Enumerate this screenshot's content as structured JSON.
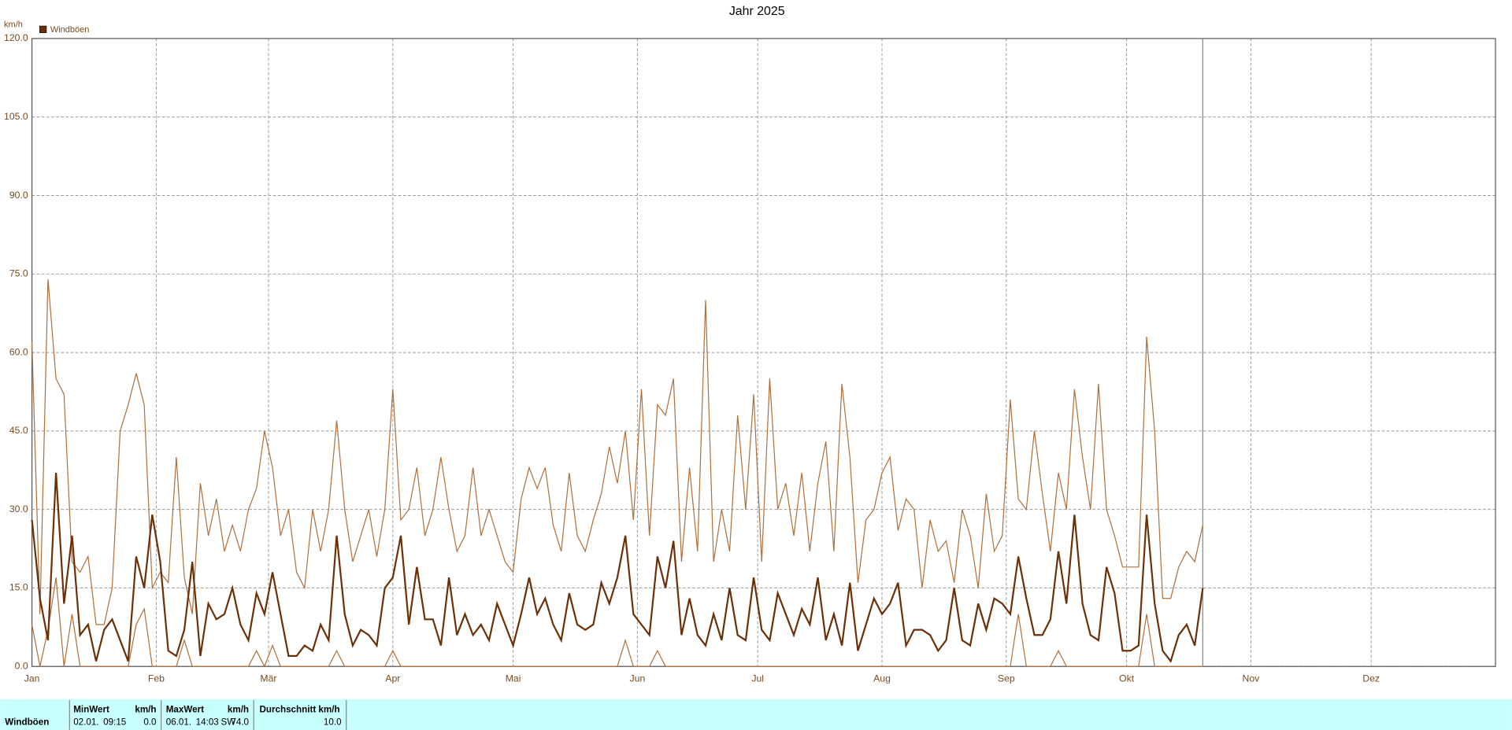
{
  "chart_data": {
    "type": "line",
    "title": "Jahr 2025",
    "y_label": "km/h",
    "xlim": [
      0,
      365
    ],
    "ylim": [
      0,
      120
    ],
    "grid": true,
    "legend": "top-left",
    "xticks": [
      {
        "value": 0,
        "label": "Jan"
      },
      {
        "value": 31,
        "label": "Feb"
      },
      {
        "value": 59,
        "label": "Mär"
      },
      {
        "value": 90,
        "label": "Apr"
      },
      {
        "value": 120,
        "label": "Mai"
      },
      {
        "value": 151,
        "label": "Jun"
      },
      {
        "value": 181,
        "label": "Jul"
      },
      {
        "value": 212,
        "label": "Aug"
      },
      {
        "value": 243,
        "label": "Sep"
      },
      {
        "value": 273,
        "label": "Okt"
      },
      {
        "value": 304,
        "label": "Nov"
      },
      {
        "value": 334,
        "label": "Dez"
      }
    ],
    "yticks": [
      {
        "value": 0,
        "label": "0.0"
      },
      {
        "value": 15,
        "label": "15.0"
      },
      {
        "value": 30,
        "label": "30.0"
      },
      {
        "value": 45,
        "label": "45.0"
      },
      {
        "value": 60,
        "label": "60.0"
      },
      {
        "value": 75,
        "label": "75.0"
      },
      {
        "value": 90,
        "label": "90.0"
      },
      {
        "value": 105,
        "label": "105.0"
      },
      {
        "value": 120,
        "label": "120.0"
      }
    ],
    "x": [
      0,
      2,
      4,
      6,
      8,
      10,
      12,
      14,
      16,
      18,
      20,
      22,
      24,
      26,
      28,
      30,
      32,
      34,
      36,
      38,
      40,
      42,
      44,
      46,
      48,
      50,
      52,
      54,
      56,
      58,
      60,
      62,
      64,
      66,
      68,
      70,
      72,
      74,
      76,
      78,
      80,
      82,
      84,
      86,
      88,
      90,
      92,
      94,
      96,
      98,
      100,
      102,
      104,
      106,
      108,
      110,
      112,
      114,
      116,
      118,
      120,
      122,
      124,
      126,
      128,
      130,
      132,
      134,
      136,
      138,
      140,
      142,
      144,
      146,
      148,
      150,
      152,
      154,
      156,
      158,
      160,
      162,
      164,
      166,
      168,
      170,
      172,
      174,
      176,
      178,
      180,
      182,
      184,
      186,
      188,
      190,
      192,
      194,
      196,
      198,
      200,
      202,
      204,
      206,
      208,
      210,
      212,
      214,
      216,
      218,
      220,
      222,
      224,
      226,
      228,
      230,
      232,
      234,
      236,
      238,
      240,
      242,
      244,
      246,
      248,
      250,
      252,
      254,
      256,
      258,
      260,
      262,
      264,
      266,
      268,
      270,
      272,
      274,
      276,
      278,
      280,
      282,
      284,
      286,
      288,
      290,
      292
    ],
    "series": [
      {
        "name": "Windböen",
        "color": "#6b3008",
        "values": [
          28,
          13,
          5,
          37,
          12,
          25,
          6,
          8,
          1,
          7,
          9,
          5,
          1,
          21,
          15,
          29,
          20,
          3,
          2,
          7,
          20,
          2,
          12,
          9,
          10,
          15,
          8,
          5,
          14,
          10,
          18,
          10,
          2,
          2,
          4,
          3,
          8,
          5,
          25,
          10,
          4,
          7,
          6,
          4,
          15,
          17,
          25,
          8,
          19,
          9,
          9,
          4,
          17,
          6,
          10,
          6,
          8,
          5,
          12,
          8,
          4,
          10,
          17,
          10,
          13,
          8,
          5,
          14,
          8,
          7,
          8,
          16,
          12,
          17,
          25,
          10,
          8,
          6,
          21,
          15,
          24,
          6,
          13,
          6,
          4,
          10,
          5,
          15,
          6,
          5,
          17,
          7,
          5,
          14,
          10,
          6,
          11,
          8,
          17,
          5,
          10,
          4,
          16,
          3,
          8,
          13,
          10,
          12,
          16,
          4,
          7,
          7,
          6,
          3,
          5,
          15,
          5,
          4,
          12,
          7,
          13,
          12,
          10,
          21,
          13,
          6,
          6,
          9,
          22,
          12,
          29,
          12,
          6,
          5,
          19,
          14,
          3,
          3,
          4,
          29,
          12,
          3,
          1,
          6,
          8,
          4,
          15
        ]
      },
      {
        "color": "#b0703c",
        "values": [
          62,
          10,
          74,
          55,
          52,
          20,
          18,
          21,
          8,
          8,
          15,
          45,
          50,
          56,
          50,
          15,
          18,
          16,
          40,
          17,
          10,
          35,
          25,
          32,
          22,
          27,
          22,
          30,
          34,
          45,
          38,
          25,
          30,
          18,
          15,
          30,
          22,
          30,
          47,
          30,
          20,
          25,
          30,
          21,
          30,
          53,
          28,
          30,
          38,
          25,
          30,
          40,
          30,
          22,
          25,
          38,
          25,
          30,
          25,
          20,
          18,
          32,
          38,
          34,
          38,
          27,
          22,
          37,
          25,
          22,
          28,
          33,
          42,
          35,
          45,
          28,
          53,
          25,
          50,
          48,
          55,
          20,
          38,
          22,
          70,
          20,
          30,
          22,
          48,
          30,
          52,
          20,
          55,
          30,
          35,
          25,
          37,
          22,
          35,
          43,
          22,
          54,
          40,
          16,
          28,
          30,
          37,
          40,
          26,
          32,
          30,
          15,
          28,
          22,
          24,
          16,
          30,
          25,
          15,
          33,
          22,
          25,
          51,
          32,
          30,
          45,
          33,
          22,
          37,
          30,
          53,
          40,
          30,
          54,
          30,
          25,
          19,
          19,
          19,
          63,
          45,
          13,
          13,
          19,
          22,
          20,
          27
        ]
      },
      {
        "color": "#b0703c",
        "values": [
          8,
          0,
          7,
          17,
          0,
          10,
          0,
          0,
          0,
          0,
          0,
          0,
          0,
          8,
          11,
          0,
          0,
          0,
          0,
          5,
          0,
          0,
          0,
          0,
          0,
          0,
          0,
          0,
          3,
          0,
          4,
          0,
          0,
          0,
          0,
          0,
          0,
          0,
          3,
          0,
          0,
          0,
          0,
          0,
          0,
          3,
          0,
          0,
          0,
          0,
          0,
          0,
          0,
          0,
          0,
          0,
          0,
          0,
          0,
          0,
          0,
          0,
          0,
          0,
          0,
          0,
          0,
          0,
          0,
          0,
          0,
          0,
          0,
          0,
          5,
          0,
          0,
          0,
          3,
          0,
          0,
          0,
          0,
          0,
          0,
          0,
          0,
          0,
          0,
          0,
          0,
          0,
          0,
          0,
          0,
          0,
          0,
          0,
          0,
          0,
          0,
          0,
          0,
          0,
          0,
          0,
          0,
          0,
          0,
          0,
          0,
          0,
          0,
          0,
          0,
          0,
          0,
          0,
          0,
          0,
          0,
          0,
          0,
          10,
          0,
          0,
          0,
          0,
          3,
          0,
          0,
          0,
          0,
          0,
          0,
          0,
          0,
          0,
          0,
          10,
          0,
          0,
          0,
          0,
          0,
          0,
          0
        ]
      }
    ]
  },
  "summary": {
    "row_label": "Windböen",
    "min": {
      "header": "MinWert",
      "unit": "km/h",
      "date": "02.01.",
      "time": "09:15",
      "value": "0.0"
    },
    "max": {
      "header": "MaxWert",
      "unit": "km/h",
      "date": "06.01.",
      "time": "14:03",
      "direction": "SW",
      "value": "74.0"
    },
    "avg": {
      "header": "Durchschnitt km/h",
      "value": "10.0"
    }
  }
}
